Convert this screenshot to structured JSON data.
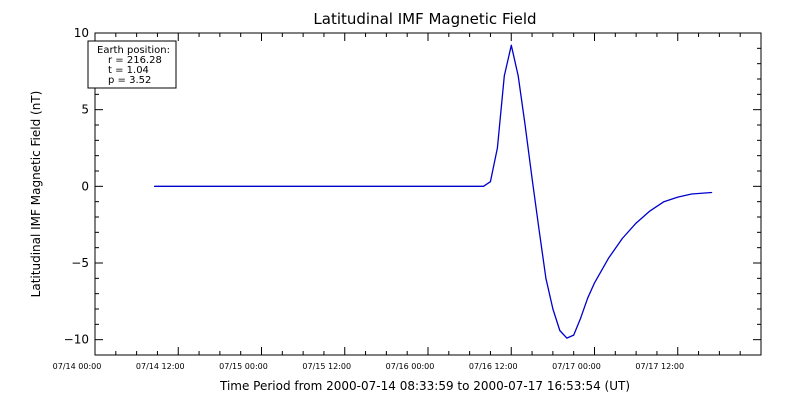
{
  "chart_data": {
    "type": "line",
    "title": "Latitudinal IMF Magnetic Field",
    "xlabel": "Time Period from 2000-07-14 08:33:59 to 2000-07-17 16:53:54 (UT)",
    "ylabel": "Latitudinal IMF Magnetic Field (nT)",
    "xlim": [
      "2000-07-14 00:00",
      "2000-07-18 00:00"
    ],
    "ylim": [
      -11,
      10
    ],
    "x_ticks": [
      {
        "label": "07/14 00:00",
        "time": "2000-07-14 00:00"
      },
      {
        "label": "07/14 12:00",
        "time": "2000-07-14 12:00"
      },
      {
        "label": "07/15 00:00",
        "time": "2000-07-15 00:00"
      },
      {
        "label": "07/15 12:00",
        "time": "2000-07-15 12:00"
      },
      {
        "label": "07/16 00:00",
        "time": "2000-07-16 00:00"
      },
      {
        "label": "07/16 12:00",
        "time": "2000-07-16 12:00"
      },
      {
        "label": "07/17 00:00",
        "time": "2000-07-17 00:00"
      },
      {
        "label": "07/17 12:00",
        "time": "2000-07-17 12:00"
      }
    ],
    "y_ticks": [
      {
        "label": "10",
        "value": 10
      },
      {
        "label": "5",
        "value": 5
      },
      {
        "label": "0",
        "value": 0
      },
      {
        "label": "−5",
        "value": -5
      },
      {
        "label": "−10",
        "value": -10
      }
    ],
    "line_color": "#0000cc",
    "series": [
      {
        "x": [
          "2000-07-14 08:34",
          "2000-07-14 16:00",
          "2000-07-15 00:00",
          "2000-07-15 12:00",
          "2000-07-16 00:00",
          "2000-07-16 08:00",
          "2000-07-16 09:00",
          "2000-07-16 10:00",
          "2000-07-16 11:00",
          "2000-07-16 12:00",
          "2000-07-16 13:00",
          "2000-07-16 14:00",
          "2000-07-16 15:00",
          "2000-07-16 16:00",
          "2000-07-16 17:00",
          "2000-07-16 18:00",
          "2000-07-16 19:00",
          "2000-07-16 20:00",
          "2000-07-16 21:00",
          "2000-07-16 22:00",
          "2000-07-16 23:00",
          "2000-07-17 00:00",
          "2000-07-17 02:00",
          "2000-07-17 04:00",
          "2000-07-17 06:00",
          "2000-07-17 08:00",
          "2000-07-17 10:00",
          "2000-07-17 12:00",
          "2000-07-17 14:00",
          "2000-07-17 16:54"
        ],
        "y": [
          0,
          0,
          0,
          0,
          0,
          0,
          0.3,
          2.5,
          7.2,
          9.2,
          7.2,
          4.0,
          0.5,
          -2.8,
          -6.0,
          -8.0,
          -9.4,
          -9.9,
          -9.7,
          -8.6,
          -7.3,
          -6.3,
          -4.7,
          -3.4,
          -2.4,
          -1.6,
          -1.0,
          -0.7,
          -0.5,
          -0.4
        ]
      }
    ]
  },
  "info_box": {
    "heading": "Earth position:",
    "lines": [
      "r = 216.28",
      "t = 1.04",
      "p = 3.52"
    ]
  }
}
